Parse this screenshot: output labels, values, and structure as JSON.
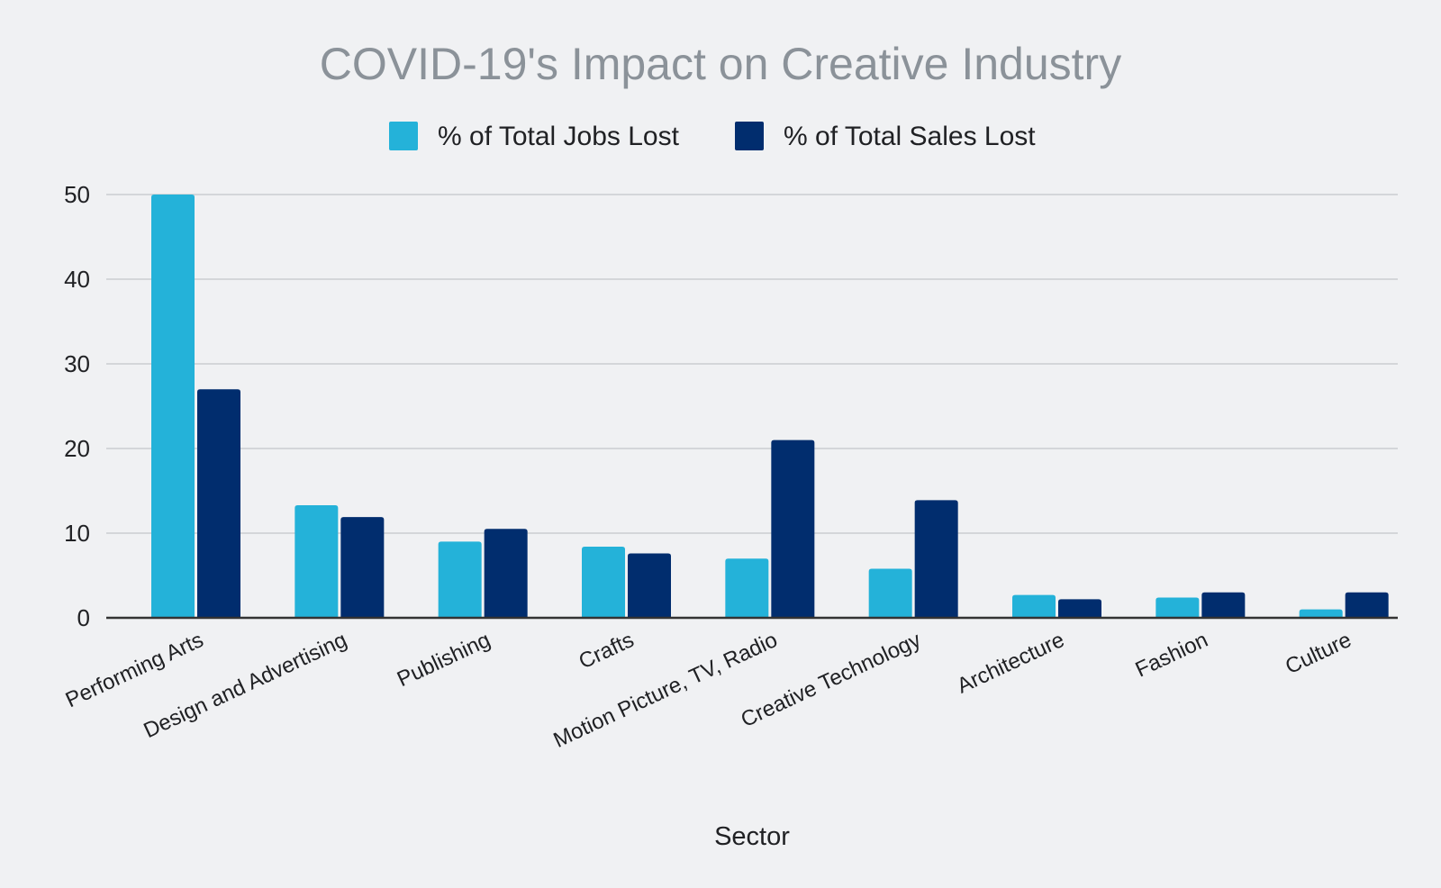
{
  "chart_data": {
    "type": "bar",
    "title": "COVID-19's Impact on Creative Industry",
    "xlabel": "Sector",
    "ylabel": "",
    "ylim": [
      0,
      50
    ],
    "yticks": [
      0,
      10,
      20,
      30,
      40,
      50
    ],
    "grid": true,
    "legend_position": "top-center",
    "categories": [
      "Performing Arts",
      "Design and Advertising",
      "Publishing",
      "Crafts",
      "Motion Picture, TV, Radio",
      "Creative Technology",
      "Architecture",
      "Fashion",
      "Culture"
    ],
    "series": [
      {
        "name": "% of Total Jobs Lost",
        "color": "#24b2d9",
        "values": [
          50,
          13.3,
          9,
          8.4,
          7,
          5.8,
          2.7,
          2.4,
          1
        ]
      },
      {
        "name": "% of Total Sales Lost",
        "color": "#012d6e",
        "values": [
          27,
          11.9,
          10.5,
          7.6,
          21,
          13.9,
          2.2,
          3,
          3
        ]
      }
    ]
  }
}
